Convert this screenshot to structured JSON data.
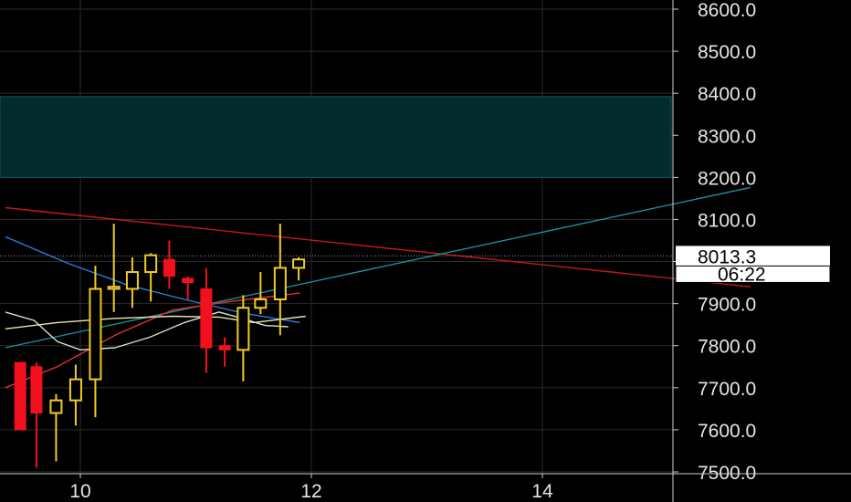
{
  "chart_data": {
    "type": "candlestick",
    "title": "",
    "xlabel": "",
    "ylabel": "",
    "ylim": [
      7500,
      8620
    ],
    "xlim": [
      9.35,
      15.8
    ],
    "x_ticks": [
      10,
      12,
      14
    ],
    "x_tick_labels": [
      "10",
      "12",
      "14"
    ],
    "y_ticks": [
      7500,
      7600,
      7700,
      7800,
      7900,
      8000,
      8100,
      8200,
      8300,
      8400,
      8500,
      8600
    ],
    "y_tick_labels": [
      "7500.0",
      "7600.0",
      "7700.0",
      "7800.0",
      "7900.0",
      "8000.0",
      "8100.0",
      "8200.0",
      "8300.0",
      "8400.0",
      "8500.0",
      "8600.0"
    ],
    "grid": true,
    "candles": [
      {
        "x": 9.48,
        "open": 7760,
        "high": 7760,
        "low": 7600,
        "close": 7600
      },
      {
        "x": 9.62,
        "open": 7750,
        "high": 7760,
        "low": 7510,
        "close": 7640
      },
      {
        "x": 9.79,
        "open": 7640,
        "high": 7685,
        "low": 7525,
        "close": 7670
      },
      {
        "x": 9.96,
        "open": 7670,
        "high": 7755,
        "low": 7610,
        "close": 7720
      },
      {
        "x": 10.13,
        "open": 7720,
        "high": 7990,
        "low": 7630,
        "close": 7935
      },
      {
        "x": 10.29,
        "open": 7935,
        "high": 8090,
        "low": 7880,
        "close": 7940
      },
      {
        "x": 10.45,
        "open": 7935,
        "high": 8010,
        "low": 7890,
        "close": 7975
      },
      {
        "x": 10.61,
        "open": 7975,
        "high": 8020,
        "low": 7905,
        "close": 8015
      },
      {
        "x": 10.77,
        "open": 8005,
        "high": 8050,
        "low": 7935,
        "close": 7965
      },
      {
        "x": 10.93,
        "open": 7960,
        "high": 7965,
        "low": 7910,
        "close": 7950
      },
      {
        "x": 11.09,
        "open": 7935,
        "high": 7985,
        "low": 7735,
        "close": 7795
      },
      {
        "x": 11.25,
        "open": 7800,
        "high": 7820,
        "low": 7750,
        "close": 7790
      },
      {
        "x": 11.41,
        "open": 7790,
        "high": 7920,
        "low": 7715,
        "close": 7890
      },
      {
        "x": 11.56,
        "open": 7890,
        "high": 7975,
        "low": 7875,
        "close": 7910
      },
      {
        "x": 11.73,
        "open": 7910,
        "high": 8090,
        "low": 7825,
        "close": 7985
      },
      {
        "x": 11.89,
        "open": 7985,
        "high": 8010,
        "low": 7955,
        "close": 8005
      }
    ],
    "zone": {
      "y_low": 8200,
      "y_high": 8392,
      "color": "#032b2d"
    },
    "series": [
      {
        "color": "#c41818",
        "points": [
          [
            9.35,
            8128
          ],
          [
            15.8,
            7940
          ]
        ]
      },
      {
        "color": "#1a8fa0",
        "points": [
          [
            9.35,
            7795
          ],
          [
            15.8,
            8176
          ]
        ]
      },
      {
        "color": "#2a7ee0",
        "points": [
          [
            9.35,
            8059
          ],
          [
            9.9,
            7995
          ],
          [
            10.4,
            7945
          ],
          [
            10.9,
            7910
          ],
          [
            11.4,
            7878
          ],
          [
            11.9,
            7855
          ]
        ]
      },
      {
        "color": "#e03030",
        "points": [
          [
            9.35,
            7700
          ],
          [
            9.8,
            7750
          ],
          [
            10.3,
            7825
          ],
          [
            10.8,
            7885
          ],
          [
            11.3,
            7905
          ],
          [
            11.9,
            7925
          ]
        ]
      },
      {
        "color": "#ece3b0",
        "points": [
          [
            9.35,
            7840
          ],
          [
            9.8,
            7855
          ],
          [
            10.3,
            7865
          ],
          [
            10.8,
            7870
          ],
          [
            11.2,
            7868
          ],
          [
            11.5,
            7855
          ],
          [
            11.95,
            7870
          ]
        ]
      },
      {
        "color": "#d8e0c8",
        "points": [
          [
            9.35,
            7880
          ],
          [
            9.6,
            7860
          ],
          [
            9.8,
            7810
          ],
          [
            10.0,
            7790
          ],
          [
            10.3,
            7795
          ],
          [
            10.6,
            7820
          ],
          [
            10.9,
            7855
          ],
          [
            11.2,
            7880
          ],
          [
            11.4,
            7865
          ],
          [
            11.6,
            7848
          ],
          [
            11.8,
            7845
          ]
        ]
      }
    ],
    "last_price": 8013.3,
    "last_price_label": "8013.3",
    "countdown_label": "06:22",
    "colors": {
      "up": "#f2cc1f",
      "down": "#f2101e",
      "axis_text": "#e6e6e6",
      "grid": "#2b2b2b",
      "price_line": "#9a9a9a"
    }
  }
}
